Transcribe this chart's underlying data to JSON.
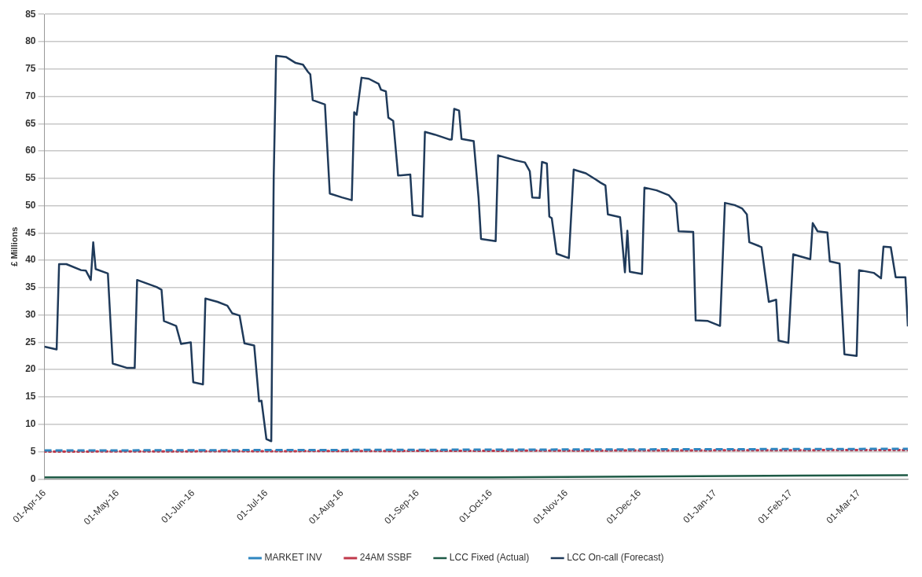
{
  "chart_data": {
    "type": "line",
    "ylabel": "£ Millions",
    "ylim": [
      0,
      85
    ],
    "yticks": [
      0,
      5,
      10,
      15,
      20,
      25,
      30,
      35,
      40,
      45,
      50,
      55,
      60,
      65,
      70,
      75,
      80,
      85
    ],
    "xlim": [
      "2016-04-01",
      "2017-03-21"
    ],
    "xticks": [
      {
        "value": "2016-04-01",
        "label": "01-Apr-16"
      },
      {
        "value": "2016-05-01",
        "label": "01-May-16"
      },
      {
        "value": "2016-06-01",
        "label": "01-Jun-16"
      },
      {
        "value": "2016-07-01",
        "label": "01-Jul-16"
      },
      {
        "value": "2016-08-01",
        "label": "01-Aug-16"
      },
      {
        "value": "2016-09-01",
        "label": "01-Sep-16"
      },
      {
        "value": "2016-10-01",
        "label": "01-Oct-16"
      },
      {
        "value": "2016-11-01",
        "label": "01-Nov-16"
      },
      {
        "value": "2016-12-01",
        "label": "01-Dec-16"
      },
      {
        "value": "2017-01-01",
        "label": "01-Jan-17"
      },
      {
        "value": "2017-02-01",
        "label": "01-Feb-17"
      },
      {
        "value": "2017-03-01",
        "label": "01-Mar-17"
      }
    ],
    "grid": "y",
    "legend": "bottom",
    "marker": "none",
    "series": [
      {
        "name": "LCC On-call (Forecast)",
        "color": "#1f3a5a",
        "line_style": "solid",
        "x": [
          "2016-04-01",
          "2016-04-06",
          "2016-04-07",
          "2016-04-10",
          "2016-04-16",
          "2016-04-18",
          "2016-04-20",
          "2016-04-21",
          "2016-04-22",
          "2016-04-27",
          "2016-04-29",
          "2016-05-05",
          "2016-05-08",
          "2016-05-09",
          "2016-05-17",
          "2016-05-19",
          "2016-05-20",
          "2016-05-25",
          "2016-05-27",
          "2016-05-31",
          "2016-06-01",
          "2016-06-05",
          "2016-06-06",
          "2016-06-11",
          "2016-06-15",
          "2016-06-17",
          "2016-06-20",
          "2016-06-22",
          "2016-06-26",
          "2016-06-28",
          "2016-06-29",
          "2016-07-01",
          "2016-07-03",
          "2016-07-04",
          "2016-07-05",
          "2016-07-09",
          "2016-07-13",
          "2016-07-16",
          "2016-07-18",
          "2016-07-19",
          "2016-07-20",
          "2016-07-25",
          "2016-07-27",
          "2016-08-01",
          "2016-08-05",
          "2016-08-06",
          "2016-08-07",
          "2016-08-09",
          "2016-08-12",
          "2016-08-16",
          "2016-08-17",
          "2016-08-19",
          "2016-08-20",
          "2016-08-22",
          "2016-08-24",
          "2016-08-29",
          "2016-08-30",
          "2016-09-03",
          "2016-09-04",
          "2016-09-08",
          "2016-09-14",
          "2016-09-15",
          "2016-09-16",
          "2016-09-18",
          "2016-09-19",
          "2016-09-24",
          "2016-09-26",
          "2016-09-27",
          "2016-10-03",
          "2016-10-04",
          "2016-10-11",
          "2016-10-15",
          "2016-10-17",
          "2016-10-18",
          "2016-10-21",
          "2016-10-22",
          "2016-10-24",
          "2016-10-25",
          "2016-10-26",
          "2016-10-28",
          "2016-11-02",
          "2016-11-04",
          "2016-11-09",
          "2016-11-13",
          "2016-11-15",
          "2016-11-17",
          "2016-11-18",
          "2016-11-23",
          "2016-11-25",
          "2016-11-26",
          "2016-11-27",
          "2016-12-02",
          "2016-12-03",
          "2016-12-08",
          "2016-12-13",
          "2016-12-16",
          "2016-12-17",
          "2016-12-23",
          "2016-12-24",
          "2016-12-29",
          "2017-01-03",
          "2017-01-05",
          "2017-01-09",
          "2017-01-12",
          "2017-01-14",
          "2017-01-15",
          "2017-01-19",
          "2017-01-20",
          "2017-01-23",
          "2017-01-26",
          "2017-01-27",
          "2017-01-31",
          "2017-02-02",
          "2017-02-05",
          "2017-02-09",
          "2017-02-10",
          "2017-02-12",
          "2017-02-16",
          "2017-02-17",
          "2017-02-21",
          "2017-02-23",
          "2017-02-28",
          "2017-03-01",
          "2017-03-07",
          "2017-03-10",
          "2017-03-11",
          "2017-03-14",
          "2017-03-16",
          "2017-03-20",
          "2017-03-21"
        ],
        "values": [
          24.2,
          23.7,
          39.3,
          39.3,
          38.2,
          38.1,
          36.4,
          43.3,
          38.4,
          37.6,
          21.1,
          20.3,
          20.3,
          36.4,
          35.1,
          34.6,
          28.9,
          28.0,
          24.7,
          25.0,
          17.7,
          17.3,
          33.0,
          32.4,
          31.7,
          30.3,
          29.9,
          24.8,
          24.4,
          14.2,
          14.3,
          7.3,
          6.9,
          55.2,
          77.4,
          77.2,
          76.1,
          75.8,
          74.5,
          74.0,
          69.3,
          68.5,
          52.2,
          51.5,
          51.0,
          67.1,
          66.6,
          73.4,
          73.2,
          72.3,
          71.2,
          70.9,
          66.1,
          65.5,
          55.5,
          55.7,
          48.3,
          48.0,
          63.5,
          63.0,
          62.1,
          62.1,
          67.7,
          67.4,
          62.2,
          61.8,
          51.4,
          43.9,
          43.5,
          59.2,
          58.3,
          57.9,
          56.3,
          51.5,
          51.4,
          58.0,
          57.7,
          48.0,
          47.7,
          41.2,
          40.4,
          56.6,
          55.9,
          54.8,
          54.2,
          53.7,
          48.4,
          47.9,
          37.8,
          45.4,
          37.9,
          37.5,
          53.3,
          52.8,
          51.9,
          50.4,
          45.3,
          45.2,
          29.0,
          28.9,
          28.0,
          50.5,
          50.1,
          49.5,
          48.4,
          43.3,
          42.6,
          42.4,
          32.4,
          32.8,
          25.3,
          24.9,
          41.1,
          40.7,
          40.2,
          46.8,
          45.3,
          45.1,
          39.8,
          39.4,
          22.8,
          22.5,
          38.2,
          37.7,
          36.7,
          42.5,
          42.4,
          36.9,
          36.9,
          27.9
        ]
      },
      {
        "name": "LCC Fixed (Actual)",
        "color": "#1e5a46",
        "line_style": "solid",
        "x": [
          "2016-04-01",
          "2016-10-01",
          "2017-03-21"
        ],
        "values": [
          0.3,
          0.3,
          0.7
        ]
      },
      {
        "name": "24AM SSBF",
        "color": "#c0394b",
        "line_style": "dotted",
        "x": [
          "2016-04-01",
          "2017-03-21"
        ],
        "values": [
          5.0,
          5.3
        ]
      },
      {
        "name": "MARKET INV",
        "color": "#2f86c0",
        "line_style": "dashed",
        "x": [
          "2016-04-01",
          "2017-03-21"
        ],
        "values": [
          5.2,
          5.5
        ]
      }
    ]
  }
}
